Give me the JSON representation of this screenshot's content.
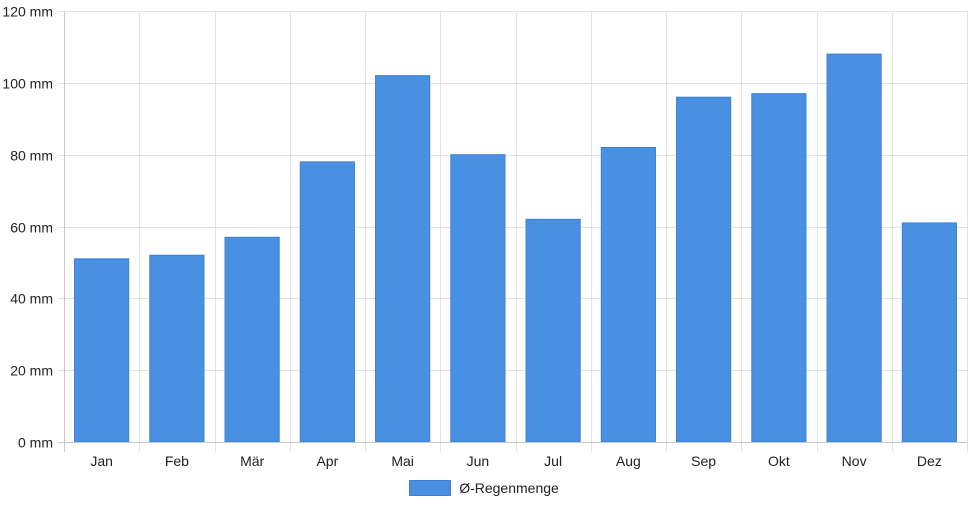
{
  "chart_data": {
    "type": "bar",
    "title": "",
    "xlabel": "",
    "ylabel": "",
    "unit": "mm",
    "ylim": [
      0,
      120
    ],
    "yticks": [
      0,
      20,
      40,
      60,
      80,
      100,
      120
    ],
    "ytick_labels": [
      "0 mm",
      "20 mm",
      "40 mm",
      "60 mm",
      "80 mm",
      "100 mm",
      "120 mm"
    ],
    "categories": [
      "Jan",
      "Feb",
      "Mär",
      "Apr",
      "Mai",
      "Jun",
      "Jul",
      "Aug",
      "Sep",
      "Okt",
      "Nov",
      "Dez"
    ],
    "series": [
      {
        "name": "Ø-Regenmenge",
        "color": "#4a90e2",
        "values": [
          51,
          52,
          57,
          78,
          102,
          80,
          62,
          82,
          96,
          97,
          108,
          61
        ]
      }
    ],
    "grid": true,
    "legend_position": "bottom"
  }
}
